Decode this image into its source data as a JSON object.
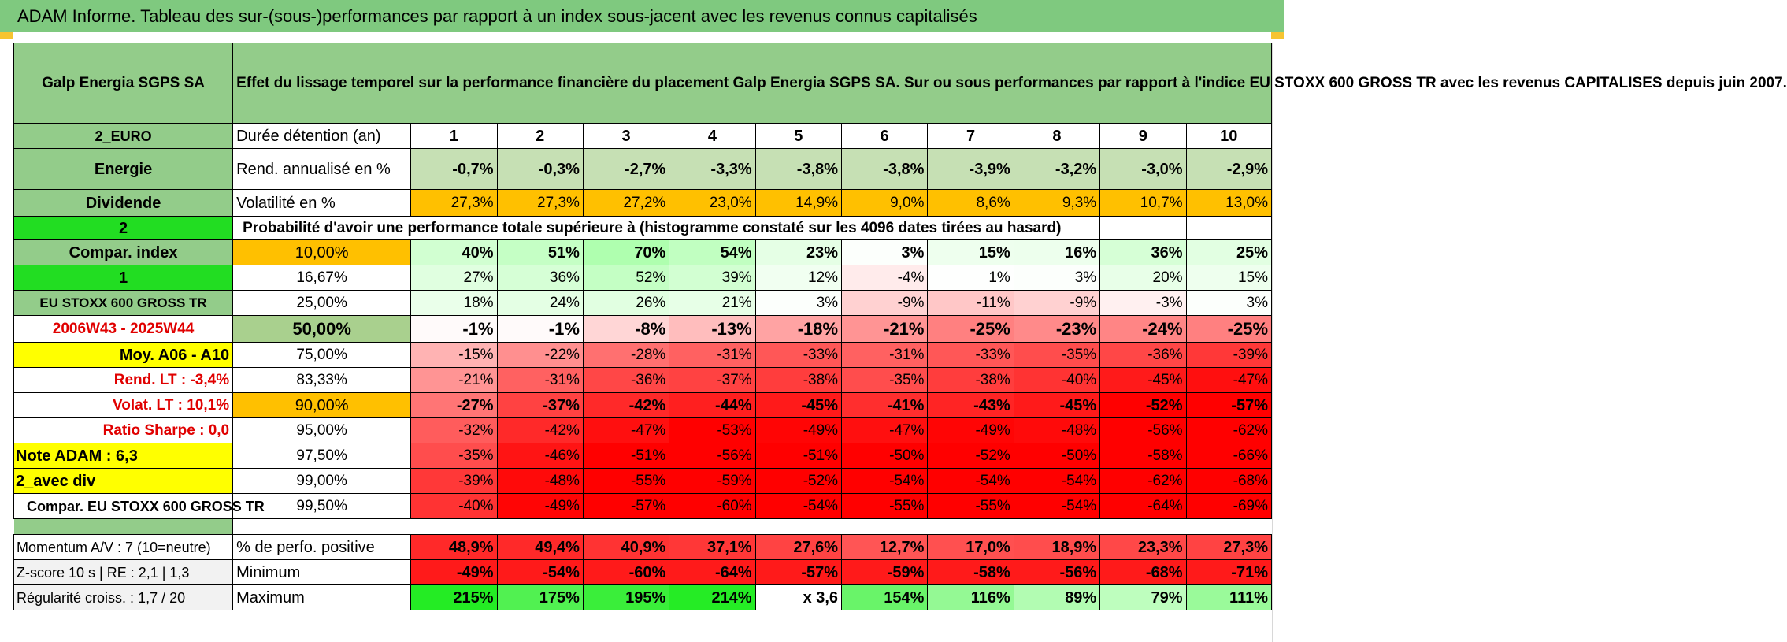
{
  "title": "ADAM Informe. Tableau des sur-(sous-)performances par rapport à un index sous-jacent avec les revenus connus capitalisés",
  "header": {
    "company": "Galp Energia SGPS SA",
    "description": "Effet du lissage temporel sur la performance financière du placement Galp Energia SGPS SA. Sur ou sous performances par rapport à l'indice EU STOXX 600 GROSS TR avec les revenus CAPITALISES depuis juin 2007."
  },
  "years": [
    "1",
    "2",
    "3",
    "4",
    "5",
    "6",
    "7",
    "8",
    "9",
    "10"
  ],
  "labels": {
    "currency": "2_EURO",
    "holding": "Durée détention (an)",
    "sector": "Energie",
    "return_label": "Rend. annualisé en %",
    "dividend": "Dividende",
    "vol_label": "Volatilité en %",
    "two": "2",
    "prob_title": "Probabilité d'avoir une performance totale supérieure à (histogramme constaté sur les 4096 dates tirées au hasard)",
    "compar": "Compar. index",
    "one": "1",
    "index_name": "EU STOXX 600 GROSS TR",
    "period": "2006W43 - 2025W44",
    "moy": "Moy. A06 - A10",
    "rend_lt": "Rend. LT :    -3,4%",
    "volat_lt": "Volat. LT :    10,1%",
    "sharpe": "Ratio Sharpe :     0,0",
    "note": "Note ADAM : 6,3",
    "avec_div": "2_avec div",
    "compar_eu": "Compar. EU STOXX 600 GROSS TR",
    "momentum": "Momentum A/V : 7 (10=neutre)",
    "pct_pos": "% de perfo. positive",
    "zscore": "Z-score 10 s | RE : 2,1 | 1,3",
    "minimum": "Minimum",
    "regularite": "Régularité croiss. : 1,7 / 20",
    "maximum": "Maximum"
  },
  "returns": [
    "-0,7%",
    "-0,3%",
    "-2,7%",
    "-3,3%",
    "-3,8%",
    "-3,8%",
    "-3,9%",
    "-3,2%",
    "-3,0%",
    "-2,9%"
  ],
  "volatility": [
    "27,3%",
    "27,3%",
    "27,2%",
    "23,0%",
    "14,9%",
    "9,0%",
    "8,6%",
    "9,3%",
    "10,7%",
    "13,0%"
  ],
  "prob_rows": [
    {
      "pct": "10,00%",
      "values": [
        "40%",
        "51%",
        "70%",
        "54%",
        "23%",
        "3%",
        "15%",
        "16%",
        "36%",
        "25%"
      ]
    },
    {
      "pct": "16,67%",
      "values": [
        "27%",
        "36%",
        "52%",
        "39%",
        "12%",
        "-4%",
        "1%",
        "3%",
        "20%",
        "15%"
      ]
    },
    {
      "pct": "25,00%",
      "values": [
        "18%",
        "24%",
        "26%",
        "21%",
        "3%",
        "-9%",
        "-11%",
        "-9%",
        "-3%",
        "3%"
      ]
    },
    {
      "pct": "50,00%",
      "values": [
        "-1%",
        "-1%",
        "-8%",
        "-13%",
        "-18%",
        "-21%",
        "-25%",
        "-23%",
        "-24%",
        "-25%"
      ]
    },
    {
      "pct": "75,00%",
      "values": [
        "-15%",
        "-22%",
        "-28%",
        "-31%",
        "-33%",
        "-31%",
        "-33%",
        "-35%",
        "-36%",
        "-39%"
      ]
    },
    {
      "pct": "83,33%",
      "values": [
        "-21%",
        "-31%",
        "-36%",
        "-37%",
        "-38%",
        "-35%",
        "-38%",
        "-40%",
        "-45%",
        "-47%"
      ]
    },
    {
      "pct": "90,00%",
      "values": [
        "-27%",
        "-37%",
        "-42%",
        "-44%",
        "-45%",
        "-41%",
        "-43%",
        "-45%",
        "-52%",
        "-57%"
      ]
    },
    {
      "pct": "95,00%",
      "values": [
        "-32%",
        "-42%",
        "-47%",
        "-53%",
        "-49%",
        "-47%",
        "-49%",
        "-48%",
        "-56%",
        "-62%"
      ]
    },
    {
      "pct": "97,50%",
      "values": [
        "-35%",
        "-46%",
        "-51%",
        "-56%",
        "-51%",
        "-50%",
        "-52%",
        "-50%",
        "-58%",
        "-66%"
      ]
    },
    {
      "pct": "99,00%",
      "values": [
        "-39%",
        "-48%",
        "-55%",
        "-59%",
        "-52%",
        "-54%",
        "-54%",
        "-54%",
        "-62%",
        "-68%"
      ]
    },
    {
      "pct": "99,50%",
      "values": [
        "-40%",
        "-49%",
        "-57%",
        "-60%",
        "-54%",
        "-55%",
        "-55%",
        "-54%",
        "-64%",
        "-69%"
      ]
    }
  ],
  "pct_positive": [
    "48,9%",
    "49,4%",
    "40,9%",
    "37,1%",
    "27,6%",
    "12,7%",
    "17,0%",
    "18,9%",
    "23,3%",
    "27,3%"
  ],
  "minimum": [
    "-49%",
    "-54%",
    "-60%",
    "-64%",
    "-57%",
    "-59%",
    "-58%",
    "-56%",
    "-68%",
    "-71%"
  ],
  "maximum": [
    "215%",
    "175%",
    "195%",
    "214%",
    "x 3,6",
    "154%",
    "116%",
    "89%",
    "79%",
    "111%"
  ]
}
